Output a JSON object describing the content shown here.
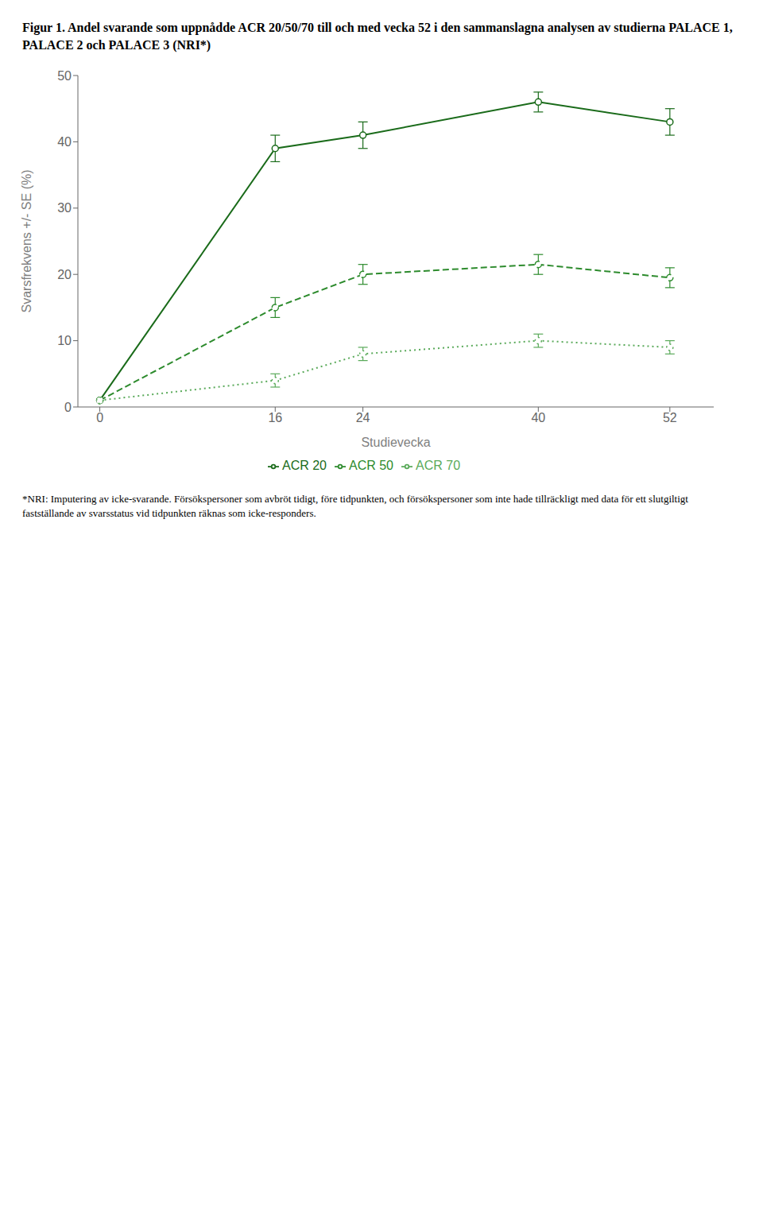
{
  "chart_data": {
    "type": "line",
    "title": "Figur 1. Andel svarande som uppnådde ACR 20/50/70 till och med vecka 52 i den sammanslagna analysen av studierna PALACE 1, PALACE 2 och PALACE 3 (NRI*)",
    "xlabel": "Studievecka",
    "ylabel": "Svarsfrekvens +/- SE (%)",
    "x": [
      0,
      16,
      24,
      40,
      52
    ],
    "xlim": [
      -2,
      56
    ],
    "xticks": [
      0,
      16,
      24,
      40,
      52
    ],
    "ylim": [
      0,
      50
    ],
    "yticks": [
      0,
      10,
      20,
      30,
      40,
      50
    ],
    "grid": false,
    "legend": "bottom",
    "annotations": [
      "*NRI: Imputering av icke-svarande. Försökspersoner som avbröt tidigt, före tidpunkten, och försökspersoner som inte hade tillräckligt med data för ett slutgiltigt fastställande av svarsstatus vid tidpunkten räknas som icke-responders."
    ],
    "series": [
      {
        "name": "ACR 20",
        "color": "#1a6b1a",
        "line_style": "solid",
        "marker": "circle",
        "values": [
          1.0,
          39.0,
          41.0,
          46.0,
          43.0
        ],
        "errors": [
          0.0,
          2.0,
          2.0,
          1.5,
          2.0
        ]
      },
      {
        "name": "ACR 50",
        "color": "#2d8b2d",
        "line_style": "dashed",
        "marker": "circle",
        "values": [
          1.0,
          15.0,
          20.0,
          21.5,
          19.5
        ],
        "errors": [
          0.0,
          1.5,
          1.5,
          1.5,
          1.5
        ]
      },
      {
        "name": "ACR 70",
        "color": "#5aaa5a",
        "line_style": "dotted",
        "marker": "circle",
        "values": [
          1.0,
          4.0,
          8.0,
          10.0,
          9.0
        ],
        "errors": [
          0.0,
          1.0,
          1.0,
          1.0,
          1.0
        ]
      }
    ]
  }
}
